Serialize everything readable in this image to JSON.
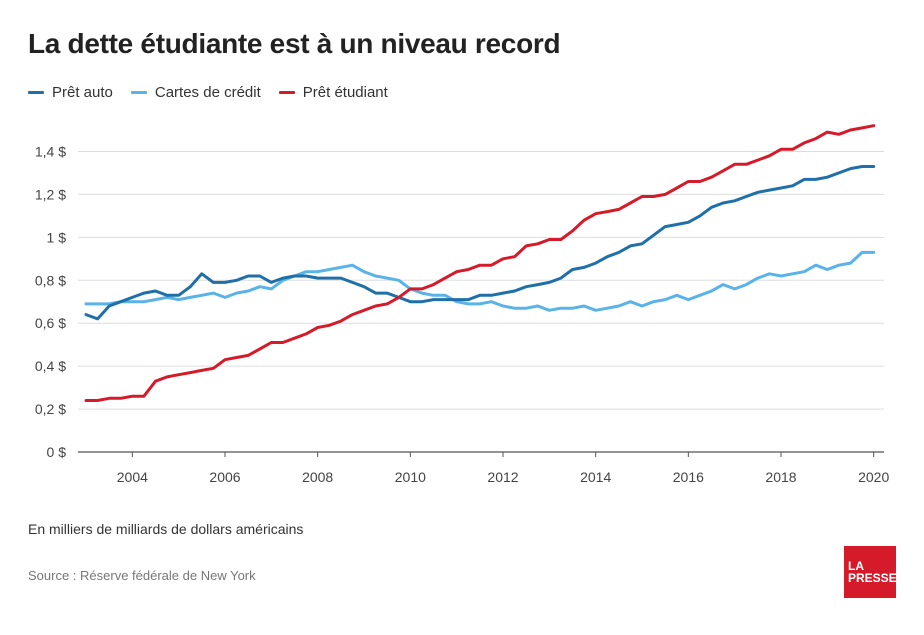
{
  "title": "La dette étudiante est à un niveau record",
  "note": "En milliers de milliards de dollars américains",
  "source": "Source : Réserve fédérale de New York",
  "logo": {
    "line1": "LA",
    "line2": "PRESSE"
  },
  "colors": {
    "auto": "#1f6fa8",
    "credit": "#59b3e8",
    "student": "#d51a2a",
    "grid": "#dddddd",
    "axis": "#555555"
  },
  "chart_data": {
    "type": "line",
    "title": "La dette étudiante est à un niveau record",
    "xlabel": "",
    "ylabel": "En milliers de milliards de dollars américains",
    "xlim": [
      2003,
      2020
    ],
    "ylim": [
      0,
      1.5
    ],
    "x_ticks": [
      "2004",
      "2006",
      "2008",
      "2010",
      "2012",
      "2014",
      "2016",
      "2018",
      "2020"
    ],
    "y_ticks": [
      "0 $",
      "0,2 $",
      "0,4 $",
      "0,6 $",
      "0,8 $",
      "1 $",
      "1,2 $",
      "1,4 $"
    ],
    "grid": true,
    "legend_position": "top-left",
    "series": [
      {
        "name": "Prêt auto",
        "color_key": "auto",
        "x": [
          2003.0,
          2003.25,
          2003.5,
          2003.75,
          2004.0,
          2004.25,
          2004.5,
          2004.75,
          2005.0,
          2005.25,
          2005.5,
          2005.75,
          2006.0,
          2006.25,
          2006.5,
          2006.75,
          2007.0,
          2007.25,
          2007.5,
          2007.75,
          2008.0,
          2008.25,
          2008.5,
          2008.75,
          2009.0,
          2009.25,
          2009.5,
          2009.75,
          2010.0,
          2010.25,
          2010.5,
          2010.75,
          2011.0,
          2011.25,
          2011.5,
          2011.75,
          2012.0,
          2012.25,
          2012.5,
          2012.75,
          2013.0,
          2013.25,
          2013.5,
          2013.75,
          2014.0,
          2014.25,
          2014.5,
          2014.75,
          2015.0,
          2015.25,
          2015.5,
          2015.75,
          2016.0,
          2016.25,
          2016.5,
          2016.75,
          2017.0,
          2017.25,
          2017.5,
          2017.75,
          2018.0,
          2018.25,
          2018.5,
          2018.75,
          2019.0,
          2019.25,
          2019.5,
          2019.75,
          2020.0
        ],
        "values": [
          0.64,
          0.62,
          0.68,
          0.7,
          0.72,
          0.74,
          0.75,
          0.73,
          0.73,
          0.77,
          0.83,
          0.79,
          0.79,
          0.8,
          0.82,
          0.82,
          0.79,
          0.81,
          0.82,
          0.82,
          0.81,
          0.81,
          0.81,
          0.79,
          0.77,
          0.74,
          0.74,
          0.72,
          0.7,
          0.7,
          0.71,
          0.71,
          0.71,
          0.71,
          0.73,
          0.73,
          0.74,
          0.75,
          0.77,
          0.78,
          0.79,
          0.81,
          0.85,
          0.86,
          0.88,
          0.91,
          0.93,
          0.96,
          0.97,
          1.01,
          1.05,
          1.06,
          1.07,
          1.1,
          1.14,
          1.16,
          1.17,
          1.19,
          1.21,
          1.22,
          1.23,
          1.24,
          1.27,
          1.27,
          1.28,
          1.3,
          1.32,
          1.33,
          1.33
        ]
      },
      {
        "name": "Cartes de crédit",
        "color_key": "credit",
        "x": [
          2003.0,
          2003.25,
          2003.5,
          2003.75,
          2004.0,
          2004.25,
          2004.5,
          2004.75,
          2005.0,
          2005.25,
          2005.5,
          2005.75,
          2006.0,
          2006.25,
          2006.5,
          2006.75,
          2007.0,
          2007.25,
          2007.5,
          2007.75,
          2008.0,
          2008.25,
          2008.5,
          2008.75,
          2009.0,
          2009.25,
          2009.5,
          2009.75,
          2010.0,
          2010.25,
          2010.5,
          2010.75,
          2011.0,
          2011.25,
          2011.5,
          2011.75,
          2012.0,
          2012.25,
          2012.5,
          2012.75,
          2013.0,
          2013.25,
          2013.5,
          2013.75,
          2014.0,
          2014.25,
          2014.5,
          2014.75,
          2015.0,
          2015.25,
          2015.5,
          2015.75,
          2016.0,
          2016.25,
          2016.5,
          2016.75,
          2017.0,
          2017.25,
          2017.5,
          2017.75,
          2018.0,
          2018.25,
          2018.5,
          2018.75,
          2019.0,
          2019.25,
          2019.5,
          2019.75,
          2020.0
        ],
        "values": [
          0.69,
          0.69,
          0.69,
          0.7,
          0.7,
          0.7,
          0.71,
          0.72,
          0.71,
          0.72,
          0.73,
          0.74,
          0.72,
          0.74,
          0.75,
          0.77,
          0.76,
          0.8,
          0.82,
          0.84,
          0.84,
          0.85,
          0.86,
          0.87,
          0.84,
          0.82,
          0.81,
          0.8,
          0.76,
          0.74,
          0.73,
          0.73,
          0.7,
          0.69,
          0.69,
          0.7,
          0.68,
          0.67,
          0.67,
          0.68,
          0.66,
          0.67,
          0.67,
          0.68,
          0.66,
          0.67,
          0.68,
          0.7,
          0.68,
          0.7,
          0.71,
          0.73,
          0.71,
          0.73,
          0.75,
          0.78,
          0.76,
          0.78,
          0.81,
          0.83,
          0.82,
          0.83,
          0.84,
          0.87,
          0.85,
          0.87,
          0.88,
          0.93,
          0.93
        ]
      },
      {
        "name": "Prêt étudiant",
        "color_key": "student",
        "x": [
          2003.0,
          2003.25,
          2003.5,
          2003.75,
          2004.0,
          2004.25,
          2004.5,
          2004.75,
          2005.0,
          2005.25,
          2005.5,
          2005.75,
          2006.0,
          2006.25,
          2006.5,
          2006.75,
          2007.0,
          2007.25,
          2007.5,
          2007.75,
          2008.0,
          2008.25,
          2008.5,
          2008.75,
          2009.0,
          2009.25,
          2009.5,
          2009.75,
          2010.0,
          2010.25,
          2010.5,
          2010.75,
          2011.0,
          2011.25,
          2011.5,
          2011.75,
          2012.0,
          2012.25,
          2012.5,
          2012.75,
          2013.0,
          2013.25,
          2013.5,
          2013.75,
          2014.0,
          2014.25,
          2014.5,
          2014.75,
          2015.0,
          2015.25,
          2015.5,
          2015.75,
          2016.0,
          2016.25,
          2016.5,
          2016.75,
          2017.0,
          2017.25,
          2017.5,
          2017.75,
          2018.0,
          2018.25,
          2018.5,
          2018.75,
          2019.0,
          2019.25,
          2019.5,
          2019.75,
          2020.0
        ],
        "values": [
          0.24,
          0.24,
          0.25,
          0.25,
          0.26,
          0.26,
          0.33,
          0.35,
          0.36,
          0.37,
          0.38,
          0.39,
          0.43,
          0.44,
          0.45,
          0.48,
          0.51,
          0.51,
          0.53,
          0.55,
          0.58,
          0.59,
          0.61,
          0.64,
          0.66,
          0.68,
          0.69,
          0.72,
          0.76,
          0.76,
          0.78,
          0.81,
          0.84,
          0.85,
          0.87,
          0.87,
          0.9,
          0.91,
          0.96,
          0.97,
          0.99,
          0.99,
          1.03,
          1.08,
          1.11,
          1.12,
          1.13,
          1.16,
          1.19,
          1.19,
          1.2,
          1.23,
          1.26,
          1.26,
          1.28,
          1.31,
          1.34,
          1.34,
          1.36,
          1.38,
          1.41,
          1.41,
          1.44,
          1.46,
          1.49,
          1.48,
          1.5,
          1.51,
          1.52
        ]
      }
    ]
  }
}
